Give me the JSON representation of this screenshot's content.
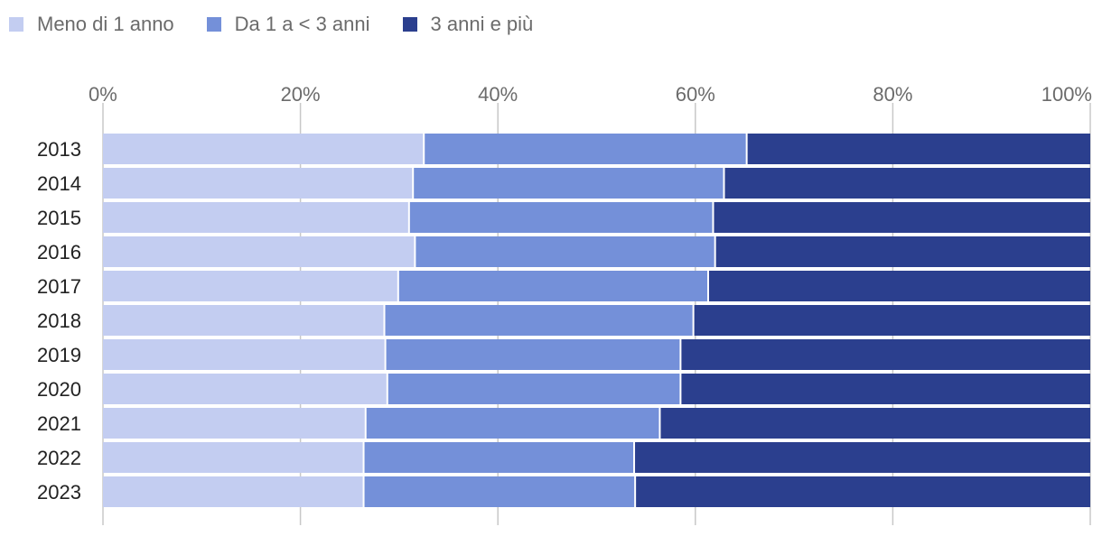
{
  "chart_data": {
    "type": "bar",
    "orientation": "horizontal",
    "stacked": true,
    "percent": true,
    "categories": [
      "2013",
      "2014",
      "2015",
      "2016",
      "2017",
      "2018",
      "2019",
      "2020",
      "2021",
      "2022",
      "2023"
    ],
    "series": [
      {
        "name": "Meno di 1 anno",
        "color": "#c3cdf1",
        "values": [
          32.5,
          31.4,
          31.0,
          31.6,
          29.9,
          28.5,
          28.6,
          28.8,
          26.6,
          26.4,
          26.4
        ]
      },
      {
        "name": "Da 1 a < 3 anni",
        "color": "#7490d9",
        "values": [
          32.7,
          31.5,
          30.8,
          30.4,
          31.4,
          31.3,
          29.9,
          29.7,
          29.8,
          27.4,
          27.5
        ]
      },
      {
        "name": "3 anni e più",
        "color": "#2b3f8e",
        "values": [
          34.8,
          37.1,
          38.2,
          38.0,
          38.7,
          40.2,
          41.5,
          41.5,
          43.6,
          46.2,
          46.1
        ]
      }
    ],
    "xlim": [
      0,
      100
    ],
    "x_ticks": [
      "0%",
      "20%",
      "40%",
      "60%",
      "80%",
      "100%"
    ],
    "legend": "top-left",
    "grid": true
  }
}
